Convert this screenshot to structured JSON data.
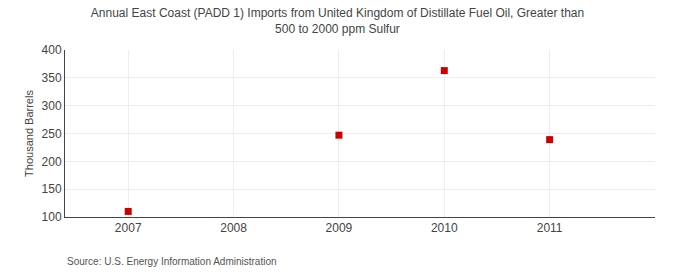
{
  "chart_data": {
    "type": "scatter",
    "title": "Annual East Coast (PADD 1) Imports from United Kingdom of Distillate Fuel Oil, Greater than\n500 to 2000 ppm Sulfur",
    "ylabel": "Thousand Barrels",
    "annotations": [
      "Source: U.S. Energy Information Administration"
    ],
    "x": [
      2007,
      2009,
      2010,
      2011
    ],
    "values": [
      110,
      247,
      363,
      239
    ],
    "color": "#cc0000",
    "marker": "square",
    "xlim": [
      2006.4,
      2012.0
    ],
    "xticks": [
      2007,
      2008,
      2009,
      2010,
      2011
    ],
    "ylim": [
      100,
      400
    ],
    "yticks": [
      100,
      150,
      200,
      250,
      300,
      350,
      400
    ],
    "grid": true
  }
}
